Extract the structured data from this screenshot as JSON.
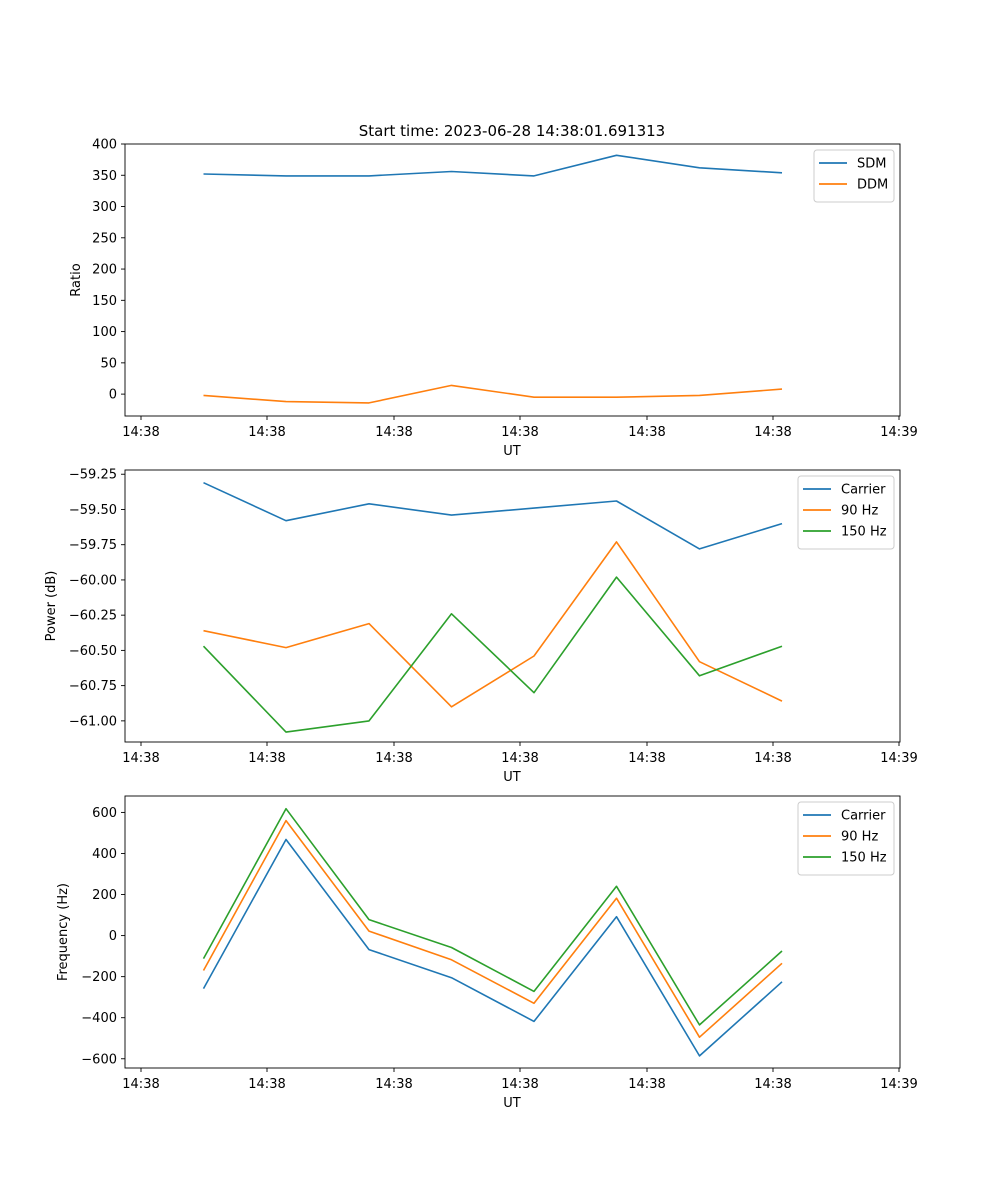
{
  "title": "Start time: 2023-06-28 14:38:01.691313",
  "chart_data": [
    {
      "type": "line",
      "ylabel": "Ratio",
      "xlabel": "UT",
      "x_tick_labels": [
        "14:38",
        "14:38",
        "14:38",
        "14:38",
        "14:38",
        "14:38",
        "14:39"
      ],
      "yticks": [
        0,
        50,
        100,
        150,
        200,
        250,
        300,
        350,
        400
      ],
      "ytick_labels": [
        "0",
        "50",
        "100",
        "150",
        "200",
        "250",
        "300",
        "350",
        "400"
      ],
      "ylim": [
        -35,
        400
      ],
      "legend": "upper right",
      "series": [
        {
          "name": "SDM",
          "color": "#1f77b4",
          "values": [
            352,
            349,
            349,
            356,
            349,
            382,
            362,
            354
          ]
        },
        {
          "name": "DDM",
          "color": "#ff7f0e",
          "values": [
            -2,
            -12,
            -14,
            14,
            -5,
            -5,
            -2,
            8
          ]
        }
      ]
    },
    {
      "type": "line",
      "ylabel": "Power (dB)",
      "xlabel": "UT",
      "x_tick_labels": [
        "14:38",
        "14:38",
        "14:38",
        "14:38",
        "14:38",
        "14:38",
        "14:39"
      ],
      "yticks": [
        -61.0,
        -60.75,
        -60.5,
        -60.25,
        -60.0,
        -59.75,
        -59.5,
        -59.25
      ],
      "ytick_labels": [
        "−61.00",
        "−60.75",
        "−60.50",
        "−60.25",
        "−60.00",
        "−59.75",
        "−59.50",
        "−59.25"
      ],
      "ylim": [
        -61.15,
        -59.22
      ],
      "legend": "upper right",
      "series": [
        {
          "name": "Carrier",
          "color": "#1f77b4",
          "values": [
            -59.31,
            -59.58,
            -59.46,
            -59.54,
            -59.49,
            -59.44,
            -59.78,
            -59.6
          ]
        },
        {
          "name": "90 Hz",
          "color": "#ff7f0e",
          "values": [
            -60.36,
            -60.48,
            -60.31,
            -60.9,
            -60.54,
            -59.73,
            -60.58,
            -60.86
          ]
        },
        {
          "name": "150 Hz",
          "color": "#2ca02c",
          "values": [
            -60.47,
            -61.08,
            -61.0,
            -60.24,
            -60.8,
            -59.98,
            -60.68,
            -60.47
          ]
        }
      ]
    },
    {
      "type": "line",
      "ylabel": "Frequency (Hz)",
      "xlabel": "UT",
      "x_tick_labels": [
        "14:38",
        "14:38",
        "14:38",
        "14:38",
        "14:38",
        "14:38",
        "14:39"
      ],
      "yticks": [
        -600,
        -400,
        -200,
        0,
        200,
        400,
        600
      ],
      "ytick_labels": [
        "−600",
        "−400",
        "−200",
        "0",
        "200",
        "400",
        "600"
      ],
      "ylim": [
        -645,
        680
      ],
      "legend": "upper right",
      "series": [
        {
          "name": "Carrier",
          "color": "#1f77b4",
          "values": [
            -258,
            468,
            -68,
            -205,
            -418,
            92,
            -586,
            -225
          ]
        },
        {
          "name": "90 Hz",
          "color": "#ff7f0e",
          "values": [
            -170,
            560,
            22,
            -118,
            -330,
            182,
            -495,
            -135
          ]
        },
        {
          "name": "150 Hz",
          "color": "#2ca02c",
          "values": [
            -112,
            618,
            78,
            -58,
            -272,
            240,
            -435,
            -75
          ]
        }
      ]
    }
  ]
}
